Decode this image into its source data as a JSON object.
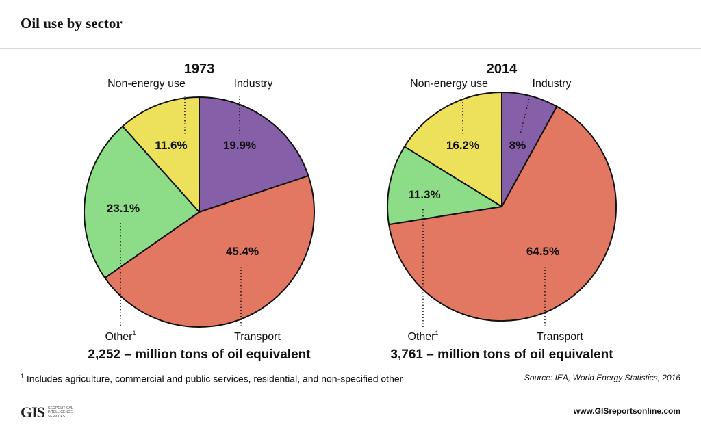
{
  "header": {
    "title": "Oil use by sector"
  },
  "chart_data": [
    {
      "type": "pie",
      "title": "1973",
      "subtitle": "2,252 – million tons of oil equivalent",
      "slices": [
        {
          "label": "Industry",
          "value": 19.9,
          "value_label": "19.9%",
          "color": "#8560a8"
        },
        {
          "label": "Transport",
          "value": 45.4,
          "value_label": "45.4%",
          "color": "#e37862"
        },
        {
          "label": "Other",
          "footnote_mark": "1",
          "value": 23.1,
          "value_label": "23.1%",
          "color": "#8cdc88"
        },
        {
          "label": "Non-energy use",
          "value": 11.6,
          "value_label": "11.6%",
          "color": "#ede05a"
        }
      ]
    },
    {
      "type": "pie",
      "title": "2014",
      "subtitle": "3,761 – million tons of oil equivalent",
      "slices": [
        {
          "label": "Industry",
          "value": 8,
          "value_label": "8%",
          "color": "#8560a8"
        },
        {
          "label": "Transport",
          "value": 64.5,
          "value_label": "64.5%",
          "color": "#e37862"
        },
        {
          "label": "Other",
          "footnote_mark": "1",
          "value": 11.3,
          "value_label": "11.3%",
          "color": "#8cdc88"
        },
        {
          "label": "Non-energy use",
          "value": 16.2,
          "value_label": "16.2%",
          "color": "#ede05a"
        }
      ]
    }
  ],
  "footer": {
    "footnote_mark": "1",
    "footnote": "Includes agriculture, commercial and public services, residential, and non-specified other",
    "source": "Source: IEA, World Energy Statistics, 2016",
    "logo_mark": "GIS",
    "logo_text": "Geopolitical Intelligence Services",
    "website": "www.GISreportsonline.com"
  }
}
